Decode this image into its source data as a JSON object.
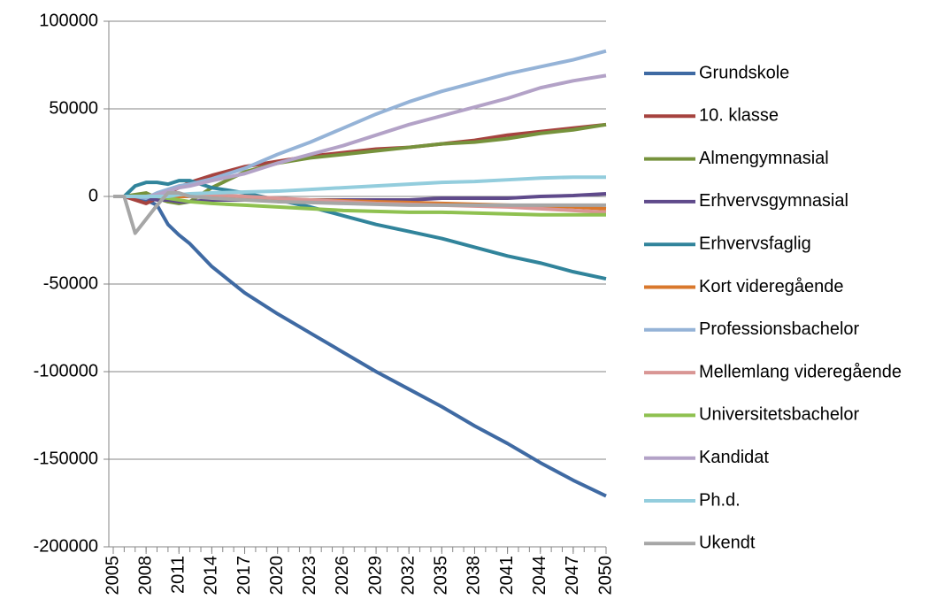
{
  "chart_data": {
    "type": "line",
    "x": [
      2005,
      2006,
      2007,
      2008,
      2009,
      2010,
      2011,
      2012,
      2014,
      2017,
      2020,
      2023,
      2026,
      2029,
      2032,
      2035,
      2038,
      2041,
      2044,
      2047,
      2050
    ],
    "xlim": [
      2005,
      2050
    ],
    "xticks": [
      2005,
      2008,
      2011,
      2014,
      2017,
      2020,
      2023,
      2026,
      2029,
      2032,
      2035,
      2038,
      2041,
      2044,
      2047,
      2050
    ],
    "ylim": [
      -200000,
      100000
    ],
    "yticks": [
      -200000,
      -150000,
      -100000,
      -50000,
      0,
      50000,
      100000
    ],
    "grid": true,
    "legend": "right",
    "series": [
      {
        "name": "Grundskole",
        "color": "#3f6aa3",
        "values": [
          0,
          0,
          -1000,
          -2000,
          -5000,
          -16000,
          -22000,
          -27000,
          -40000,
          -55000,
          -67000,
          -78000,
          -89000,
          -100000,
          -110000,
          -120000,
          -131000,
          -141000,
          -152000,
          -162000,
          -171000
        ]
      },
      {
        "name": "10. klasse",
        "color": "#a6433f",
        "values": [
          0,
          0,
          -2000,
          -4000,
          -1000,
          2000,
          5000,
          8000,
          12000,
          17000,
          20000,
          23000,
          25000,
          27000,
          28000,
          30000,
          32000,
          35000,
          37000,
          39000,
          41000
        ]
      },
      {
        "name": "Almengymnasial",
        "color": "#76923c",
        "values": [
          0,
          0,
          1000,
          2000,
          -1000,
          -3000,
          -4000,
          -3000,
          5000,
          14000,
          19000,
          22000,
          24000,
          26000,
          28000,
          30000,
          31000,
          33000,
          36000,
          38000,
          41000
        ]
      },
      {
        "name": "Erhvervsgymnasial",
        "color": "#5f4a8b",
        "values": [
          0,
          0,
          0,
          -1000,
          -2000,
          -2000,
          -3000,
          -3000,
          -2000,
          -2000,
          -2000,
          -2000,
          -2000,
          -2000,
          -2000,
          -1000,
          -1000,
          -1000,
          0,
          500,
          1500
        ]
      },
      {
        "name": "Erhvervsfaglig",
        "color": "#31849b",
        "values": [
          0,
          0,
          6000,
          8000,
          8000,
          7000,
          9000,
          9000,
          5000,
          2000,
          -2000,
          -6000,
          -11000,
          -16000,
          -20000,
          -24000,
          -29000,
          -34000,
          -38000,
          -43000,
          -47000
        ]
      },
      {
        "name": "Kort videregående",
        "color": "#d9782c",
        "values": [
          0,
          0,
          0,
          0,
          0,
          0,
          0,
          0,
          -500,
          -1000,
          -1500,
          -2000,
          -2500,
          -3000,
          -3500,
          -4000,
          -4500,
          -5000,
          -5500,
          -6000,
          -7000
        ]
      },
      {
        "name": "Professionsbachelor",
        "color": "#95b3d7",
        "values": [
          0,
          0,
          0,
          -1000,
          2000,
          4000,
          6000,
          7000,
          10000,
          16000,
          24000,
          31000,
          39000,
          47000,
          54000,
          60000,
          65000,
          70000,
          74000,
          78000,
          83000
        ]
      },
      {
        "name": "Mellemlang videregående",
        "color": "#d99694",
        "values": [
          0,
          0,
          0,
          0,
          0,
          1000,
          1000,
          1000,
          1000,
          0,
          -1000,
          -2000,
          -3000,
          -4000,
          -4500,
          -5000,
          -5500,
          -6000,
          -7000,
          -8000,
          -9000
        ]
      },
      {
        "name": "Universitetsbachelor",
        "color": "#8fc150",
        "values": [
          0,
          0,
          0,
          0,
          0,
          -1000,
          -2000,
          -3000,
          -4000,
          -5000,
          -6000,
          -7000,
          -8000,
          -8500,
          -9000,
          -9000,
          -9500,
          -10000,
          -10500,
          -10500,
          -10500
        ]
      },
      {
        "name": "Kandidat",
        "color": "#b3a2c7",
        "values": [
          0,
          0,
          0,
          0,
          1000,
          3000,
          5000,
          6000,
          9000,
          13000,
          19000,
          24000,
          29000,
          35000,
          41000,
          46000,
          51000,
          56000,
          62000,
          66000,
          69000
        ]
      },
      {
        "name": "Ph.d.",
        "color": "#93cddd",
        "values": [
          0,
          0,
          0,
          0,
          0,
          0,
          1000,
          1500,
          2000,
          2500,
          3000,
          4000,
          5000,
          6000,
          7000,
          8000,
          8500,
          9500,
          10500,
          11000,
          11000
        ]
      },
      {
        "name": "Ukendt",
        "color": "#a6a6a6",
        "values": [
          0,
          0,
          -21000,
          -13000,
          -5000,
          2000,
          2000,
          0,
          -1000,
          -2000,
          -3000,
          -3500,
          -4000,
          -4500,
          -5000,
          -5000,
          -5000,
          -5000,
          -5000,
          -5000,
          -5000
        ]
      }
    ]
  }
}
